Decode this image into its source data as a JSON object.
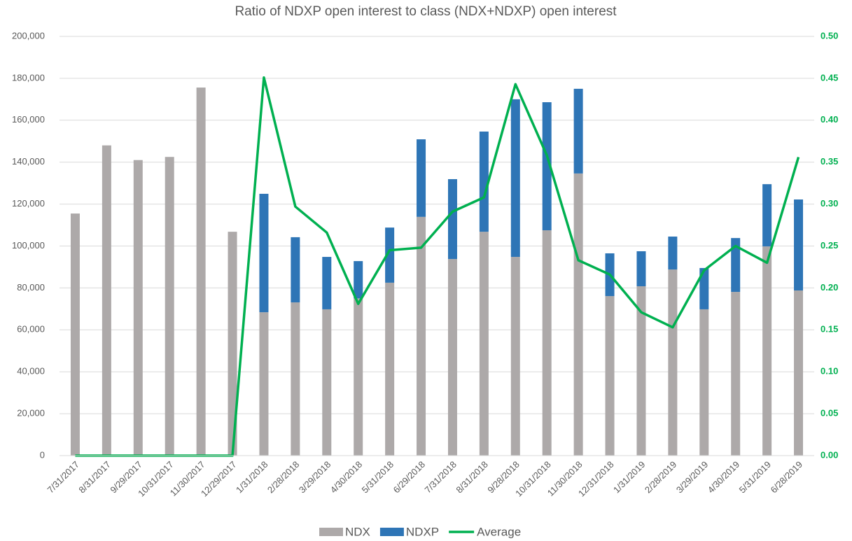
{
  "chart_data": {
    "type": "bar",
    "stacked": true,
    "title": "Ratio of NDXP open interest to class (NDX+NDXP) open interest",
    "categories": [
      "7/31/2017",
      "8/31/2017",
      "9/29/2017",
      "10/31/2017",
      "11/30/2017",
      "12/29/2017",
      "1/31/2018",
      "2/28/2018",
      "3/29/2018",
      "4/30/2018",
      "5/31/2018",
      "6/29/2018",
      "7/31/2018",
      "8/31/2018",
      "9/28/2018",
      "10/31/2018",
      "11/30/2018",
      "12/31/2018",
      "1/31/2019",
      "2/28/2019",
      "3/29/2019",
      "4/30/2019",
      "5/31/2019",
      "6/28/2019"
    ],
    "series": [
      {
        "name": "NDX",
        "type": "bar",
        "color": "#ADA9A9",
        "values": [
          115500,
          148000,
          141000,
          142500,
          175600,
          106800,
          68400,
          73100,
          69800,
          75000,
          82500,
          113900,
          93800,
          106800,
          94800,
          107500,
          134600,
          76100,
          80800,
          88800,
          69800,
          78100,
          99800,
          78800
        ]
      },
      {
        "name": "NDXP",
        "type": "bar",
        "color": "#2E75B6",
        "values": [
          0,
          0,
          0,
          0,
          0,
          0,
          56500,
          31100,
          25000,
          17800,
          26300,
          37000,
          38100,
          47800,
          75200,
          61100,
          40400,
          20400,
          16700,
          15700,
          19700,
          25700,
          29700,
          43400
        ]
      },
      {
        "name": "Average",
        "type": "line",
        "axis": "y2",
        "color": "#00B050",
        "values": [
          0,
          0,
          0,
          0,
          0,
          0,
          0.451,
          0.297,
          0.266,
          0.181,
          0.245,
          0.248,
          0.291,
          0.308,
          0.443,
          0.358,
          0.233,
          0.216,
          0.171,
          0.153,
          0.221,
          0.25,
          0.23,
          0.356
        ]
      }
    ],
    "ylim": [
      0,
      200000
    ],
    "yticks": [
      0,
      {
        "value": 20000,
        "label": "20,000"
      },
      {
        "value": 40000,
        "label": "40,000"
      },
      {
        "value": 60000,
        "label": "60,000"
      },
      {
        "value": 80000,
        "label": "80,000"
      },
      {
        "value": 100000,
        "label": "100,000"
      },
      {
        "value": 120000,
        "label": "120,000"
      },
      {
        "value": 140000,
        "label": "140,000"
      },
      {
        "value": 160000,
        "label": "160,000"
      },
      {
        "value": 180000,
        "label": "180,000"
      },
      {
        "value": 200000,
        "label": "200,000"
      }
    ],
    "y2lim": [
      0,
      0.5
    ],
    "y2ticks": [
      {
        "value": 0,
        "label": "0.00"
      },
      {
        "value": 0.05,
        "label": "0.05"
      },
      {
        "value": 0.1,
        "label": "0.10"
      },
      {
        "value": 0.15,
        "label": "0.15"
      },
      {
        "value": 0.2,
        "label": "0.20"
      },
      {
        "value": 0.25,
        "label": "0.25"
      },
      {
        "value": 0.3,
        "label": "0.30"
      },
      {
        "value": 0.35,
        "label": "0.35"
      },
      {
        "value": 0.4,
        "label": "0.40"
      },
      {
        "value": 0.45,
        "label": "0.45"
      },
      {
        "value": 0.5,
        "label": "0.50"
      }
    ],
    "grid": true,
    "legend": "bottom"
  }
}
